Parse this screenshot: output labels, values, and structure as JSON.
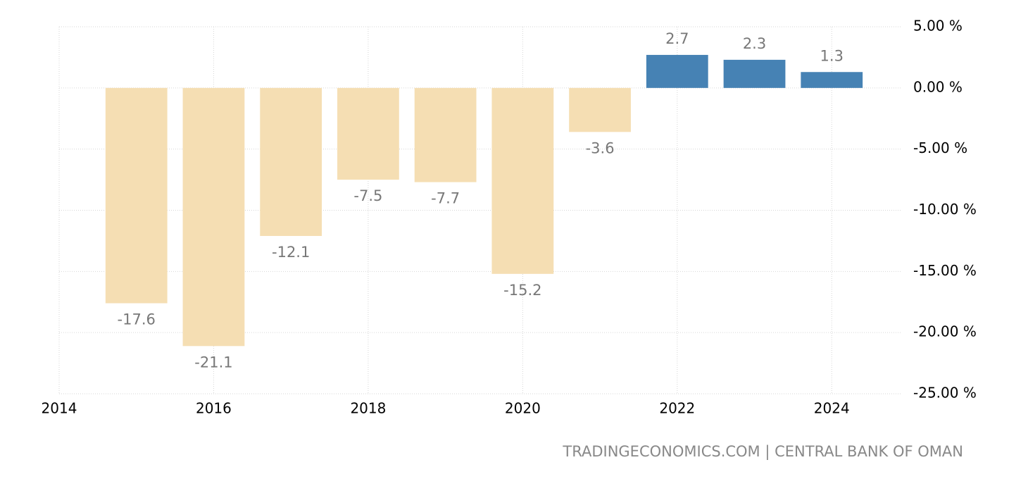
{
  "chart_data": {
    "type": "bar",
    "x": [
      2015,
      2016,
      2017,
      2018,
      2019,
      2020,
      2021,
      2022,
      2023,
      2024
    ],
    "values": [
      -17.6,
      -21.1,
      -12.1,
      -7.5,
      -7.7,
      -15.2,
      -3.6,
      2.7,
      2.3,
      1.3
    ],
    "color": "#4682b4",
    "negative_color": "#f5deb3",
    "xlim": [
      2014,
      2024.9
    ],
    "xticks": [
      2014,
      2016,
      2018,
      2020,
      2022,
      2024
    ],
    "ylim": [
      -25,
      5
    ],
    "yticks": [
      {
        "value": 5,
        "label": "5.00 %"
      },
      {
        "value": 0,
        "label": "0.00 %"
      },
      {
        "value": -5,
        "label": "-5.00 %"
      },
      {
        "value": -10,
        "label": "-10.00 %"
      },
      {
        "value": -15,
        "label": "-15.00 %"
      },
      {
        "value": -20,
        "label": "-20.00 %"
      },
      {
        "value": -25,
        "label": "-25.00 %"
      }
    ],
    "grid": true,
    "source": "TRADINGECONOMICS.COM | CENTRAL BANK OF OMAN"
  }
}
